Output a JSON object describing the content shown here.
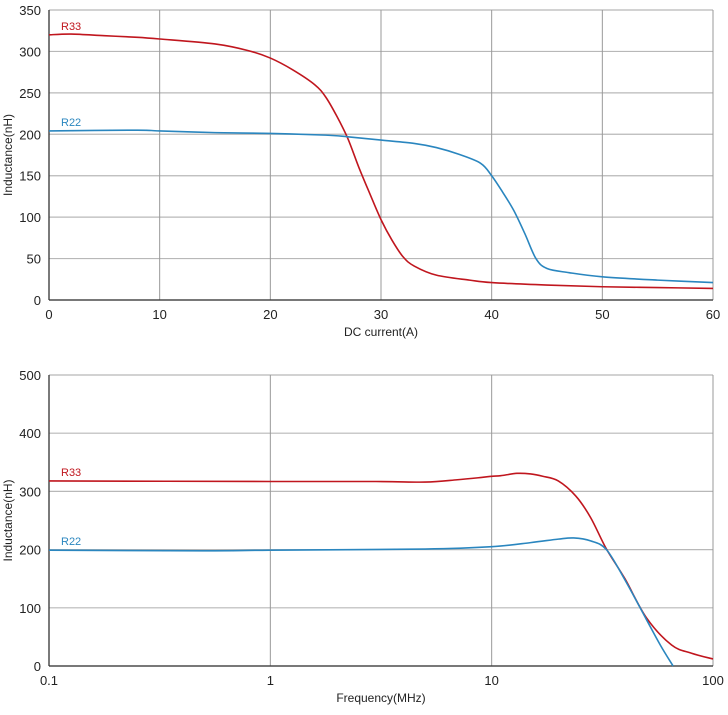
{
  "colors": {
    "R33": "#c0161e",
    "R22": "#2a86bf",
    "grid": "#b8b8b8",
    "axis": "#333333"
  },
  "chart_data": [
    {
      "type": "line",
      "title": "",
      "xlabel": "DC current(A)",
      "ylabel": "Inductance(nH)",
      "xlim": [
        0,
        60
      ],
      "ylim": [
        0,
        350
      ],
      "x_scale": "linear",
      "grid": true,
      "xticks": [
        "0",
        "10",
        "20",
        "30",
        "40",
        "50",
        "60"
      ],
      "yticks": [
        "0",
        "50",
        "100",
        "150",
        "200",
        "250",
        "300",
        "350"
      ],
      "series": [
        {
          "name": "R33",
          "color": "#c0161e",
          "x": [
            0,
            2,
            5,
            8,
            10,
            15,
            18,
            20,
            22,
            24,
            25,
            26,
            27,
            28,
            29,
            30,
            31,
            32,
            33,
            35,
            38,
            40,
            45,
            50,
            55,
            60
          ],
          "y": [
            320,
            321,
            319,
            317,
            315,
            309,
            301,
            292,
            278,
            260,
            245,
            222,
            195,
            160,
            128,
            97,
            72,
            52,
            41,
            30,
            24,
            21,
            18,
            16,
            15,
            14
          ]
        },
        {
          "name": "R22",
          "color": "#2a86bf",
          "x": [
            0,
            8,
            10,
            15,
            20,
            25,
            27,
            30,
            33,
            35,
            37,
            39,
            40,
            41,
            42,
            43,
            44,
            45,
            47,
            50,
            55,
            60
          ],
          "y": [
            204,
            205,
            204,
            202,
            201,
            199,
            197,
            193,
            189,
            184,
            176,
            165,
            150,
            130,
            108,
            80,
            50,
            38,
            33,
            28,
            24,
            21
          ]
        }
      ]
    },
    {
      "type": "line",
      "title": "",
      "xlabel": "Frequency(MHz)",
      "ylabel": "Inductance(nH)",
      "xlim": [
        0.1,
        100
      ],
      "ylim": [
        0,
        500
      ],
      "x_scale": "log",
      "grid": true,
      "xticks": [
        "0.1",
        "1",
        "10",
        "100"
      ],
      "yticks": [
        "0",
        "100",
        "200",
        "300",
        "400",
        "500"
      ],
      "series": [
        {
          "name": "R33",
          "color": "#c0161e",
          "x": [
            0.1,
            1,
            3,
            5,
            7,
            9,
            10,
            11,
            13,
            15,
            17,
            20,
            24,
            28,
            33,
            40,
            50,
            65,
            80,
            100
          ],
          "y": [
            318,
            317,
            317,
            316,
            320,
            324,
            326,
            327,
            331,
            330,
            326,
            318,
            292,
            255,
            201,
            150,
            83,
            36,
            22,
            12
          ]
        },
        {
          "name": "R22",
          "color": "#2a86bf",
          "x": [
            0.1,
            0.5,
            1,
            5,
            10,
            15,
            20,
            23.5,
            28,
            33,
            40,
            50,
            58,
            66
          ],
          "y": [
            199,
            198,
            199,
            201,
            205,
            212,
            218,
            220,
            215,
            200,
            148,
            80,
            35,
            0
          ]
        }
      ]
    }
  ]
}
